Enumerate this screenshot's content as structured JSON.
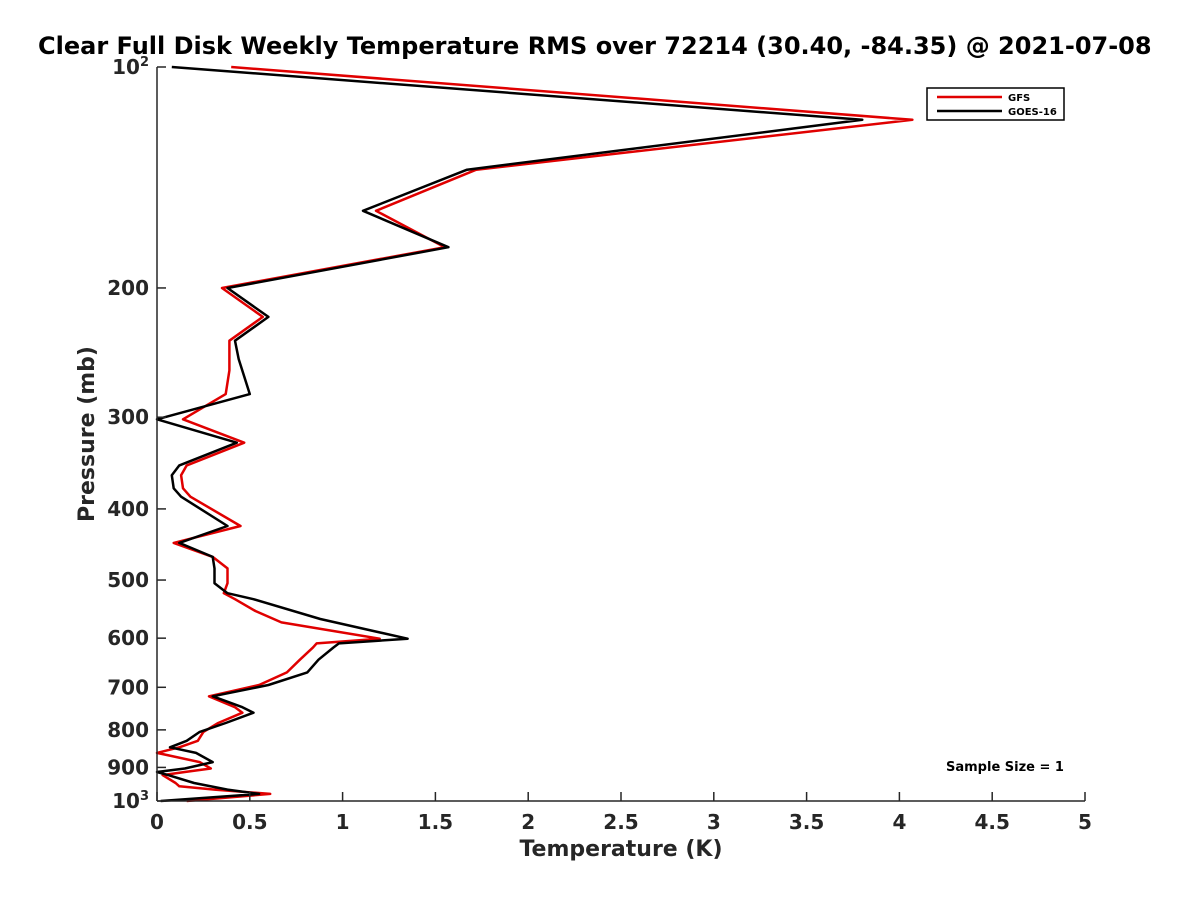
{
  "chart_data": {
    "type": "line",
    "orientation": "profile",
    "title": "Clear Full Disk Weekly Temperature RMS over 72214 (30.40, -84.35) @ 2021-07-08",
    "xlabel": "Temperature (K)",
    "ylabel": "Pressure (mb)",
    "xlim": [
      0,
      5
    ],
    "ylim": [
      100,
      1000
    ],
    "y_scale": "log",
    "y_reversed": true,
    "grid": false,
    "legend_position": "top-right",
    "x_ticks": [
      "0",
      "0.5",
      "1",
      "1.5",
      "2",
      "2.5",
      "3",
      "3.5",
      "4",
      "4.5",
      "5"
    ],
    "y_ticks": [
      {
        "value": 100,
        "base": "10",
        "exp": "2"
      },
      {
        "value": 200,
        "base": "200",
        "exp": ""
      },
      {
        "value": 300,
        "base": "300",
        "exp": ""
      },
      {
        "value": 400,
        "base": "400",
        "exp": ""
      },
      {
        "value": 500,
        "base": "500",
        "exp": ""
      },
      {
        "value": 600,
        "base": "600",
        "exp": ""
      },
      {
        "value": 700,
        "base": "700",
        "exp": ""
      },
      {
        "value": 800,
        "base": "800",
        "exp": ""
      },
      {
        "value": 900,
        "base": "900",
        "exp": ""
      },
      {
        "value": 1000,
        "base": "10",
        "exp": "3"
      }
    ],
    "annotation": "Sample Size = 1",
    "series": [
      {
        "name": "GFS",
        "color": "#e00000",
        "points": [
          [
            0.4,
            100
          ],
          [
            4.07,
            118
          ],
          [
            1.72,
            138
          ],
          [
            1.18,
            157
          ],
          [
            1.55,
            176
          ],
          [
            0.35,
            200
          ],
          [
            0.57,
            219
          ],
          [
            0.39,
            236
          ],
          [
            0.39,
            259
          ],
          [
            0.37,
            279
          ],
          [
            0.14,
            302
          ],
          [
            0.47,
            325
          ],
          [
            0.16,
            349
          ],
          [
            0.13,
            360
          ],
          [
            0.14,
            375
          ],
          [
            0.18,
            385
          ],
          [
            0.45,
            422
          ],
          [
            0.09,
            445
          ],
          [
            0.3,
            465
          ],
          [
            0.38,
            482
          ],
          [
            0.38,
            505
          ],
          [
            0.36,
            521
          ],
          [
            0.42,
            531
          ],
          [
            0.53,
            551
          ],
          [
            0.67,
            571
          ],
          [
            1.2,
            601
          ],
          [
            0.86,
            610
          ],
          [
            0.84,
            618
          ],
          [
            0.77,
            642
          ],
          [
            0.7,
            668
          ],
          [
            0.55,
            695
          ],
          [
            0.28,
            720
          ],
          [
            0.42,
            745
          ],
          [
            0.46,
            758
          ],
          [
            0.33,
            783
          ],
          [
            0.25,
            805
          ],
          [
            0.22,
            828
          ],
          [
            0.12,
            845
          ],
          [
            0.0,
            860
          ],
          [
            0.23,
            885
          ],
          [
            0.29,
            903
          ],
          [
            0.15,
            913
          ],
          [
            0.03,
            922
          ],
          [
            0.1,
            945
          ],
          [
            0.12,
            955
          ],
          [
            0.31,
            965
          ],
          [
            0.61,
            978
          ],
          [
            0.16,
            1000
          ]
        ]
      },
      {
        "name": "GOES-16",
        "color": "#000000",
        "points": [
          [
            0.08,
            100
          ],
          [
            3.8,
            118
          ],
          [
            1.67,
            138
          ],
          [
            1.11,
            157
          ],
          [
            1.57,
            176
          ],
          [
            0.38,
            200
          ],
          [
            0.6,
            219
          ],
          [
            0.42,
            236
          ],
          [
            0.44,
            250
          ],
          [
            0.5,
            279
          ],
          [
            0.0,
            302
          ],
          [
            0.43,
            325
          ],
          [
            0.12,
            349
          ],
          [
            0.08,
            360
          ],
          [
            0.09,
            375
          ],
          [
            0.13,
            385
          ],
          [
            0.38,
            422
          ],
          [
            0.12,
            445
          ],
          [
            0.3,
            465
          ],
          [
            0.31,
            482
          ],
          [
            0.31,
            505
          ],
          [
            0.38,
            521
          ],
          [
            0.52,
            531
          ],
          [
            0.88,
            565
          ],
          [
            1.35,
            601
          ],
          [
            0.98,
            610
          ],
          [
            0.95,
            618
          ],
          [
            0.87,
            642
          ],
          [
            0.81,
            668
          ],
          [
            0.6,
            695
          ],
          [
            0.3,
            720
          ],
          [
            0.46,
            745
          ],
          [
            0.52,
            758
          ],
          [
            0.37,
            783
          ],
          [
            0.23,
            805
          ],
          [
            0.16,
            828
          ],
          [
            0.07,
            845
          ],
          [
            0.21,
            860
          ],
          [
            0.3,
            885
          ],
          [
            0.15,
            903
          ],
          [
            0.0,
            913
          ],
          [
            0.06,
            922
          ],
          [
            0.2,
            945
          ],
          [
            0.38,
            965
          ],
          [
            0.55,
            978
          ],
          [
            0.02,
            1000
          ]
        ]
      }
    ]
  }
}
